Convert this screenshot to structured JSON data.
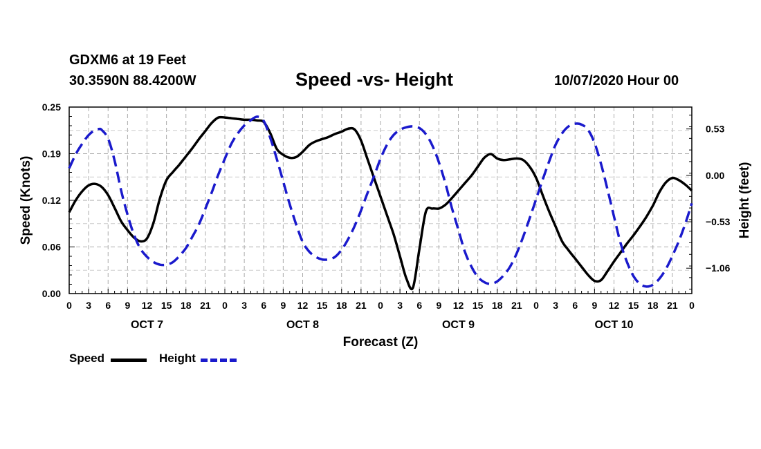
{
  "header": {
    "station": "GDXM6 at 19 Feet",
    "coords": "30.3590N 88.4200W",
    "title": "Speed -vs- Height",
    "timestamp": "10/07/2020 Hour 00"
  },
  "legend": {
    "speed_label": "Speed",
    "height_label": "Height"
  },
  "colors": {
    "speed": "#000000",
    "height": "#1a1acc",
    "grid": "#aaaaaa"
  },
  "chart_data": {
    "type": "line",
    "title": "Speed -vs- Height",
    "xlabel": "Forecast (Z)",
    "ylabel": "Speed (Knots)",
    "y2label": "Height (feet)",
    "xlim": [
      0,
      96
    ],
    "ylim": [
      0,
      0.25
    ],
    "y2lim": [
      -1.35,
      0.78
    ],
    "yticks": [
      "0.00",
      "0.06",
      "0.12",
      "0.19",
      "0.25"
    ],
    "y2ticks": [
      {
        "value": 0.53,
        "label": "0.53"
      },
      {
        "value": 0.0,
        "label": "0.00"
      },
      {
        "value": -0.53,
        "label": "-0.53"
      },
      {
        "value": -1.06,
        "label": "-1.06"
      }
    ],
    "xticks": [
      {
        "x": 0,
        "label": "0"
      },
      {
        "x": 3,
        "label": "3"
      },
      {
        "x": 6,
        "label": "6"
      },
      {
        "x": 9,
        "label": "9"
      },
      {
        "x": 12,
        "label": "12"
      },
      {
        "x": 15,
        "label": "15"
      },
      {
        "x": 18,
        "label": "18"
      },
      {
        "x": 21,
        "label": "21"
      },
      {
        "x": 24,
        "label": "0"
      },
      {
        "x": 27,
        "label": "3"
      },
      {
        "x": 30,
        "label": "6"
      },
      {
        "x": 33,
        "label": "9"
      },
      {
        "x": 36,
        "label": "12"
      },
      {
        "x": 39,
        "label": "15"
      },
      {
        "x": 42,
        "label": "18"
      },
      {
        "x": 45,
        "label": "21"
      },
      {
        "x": 48,
        "label": "0"
      },
      {
        "x": 51,
        "label": "3"
      },
      {
        "x": 54,
        "label": "6"
      },
      {
        "x": 57,
        "label": "9"
      },
      {
        "x": 60,
        "label": "12"
      },
      {
        "x": 63,
        "label": "15"
      },
      {
        "x": 66,
        "label": "18"
      },
      {
        "x": 69,
        "label": "21"
      },
      {
        "x": 72,
        "label": "0"
      },
      {
        "x": 75,
        "label": "3"
      },
      {
        "x": 78,
        "label": "6"
      },
      {
        "x": 81,
        "label": "9"
      },
      {
        "x": 84,
        "label": "12"
      },
      {
        "x": 87,
        "label": "15"
      },
      {
        "x": 90,
        "label": "18"
      },
      {
        "x": 93,
        "label": "21"
      },
      {
        "x": 96,
        "label": "0"
      }
    ],
    "days": [
      {
        "x": 12,
        "label": "OCT 7"
      },
      {
        "x": 36,
        "label": "OCT 8"
      },
      {
        "x": 60,
        "label": "OCT 9"
      },
      {
        "x": 84,
        "label": "OCT 10"
      }
    ],
    "series": [
      {
        "name": "Speed",
        "axis": "left",
        "style": "solid",
        "points": [
          [
            0,
            0.109
          ],
          [
            1,
            0.125
          ],
          [
            2,
            0.137
          ],
          [
            3,
            0.145
          ],
          [
            4,
            0.147
          ],
          [
            5,
            0.143
          ],
          [
            6,
            0.132
          ],
          [
            7,
            0.115
          ],
          [
            8,
            0.097
          ],
          [
            9,
            0.085
          ],
          [
            10,
            0.075
          ],
          [
            11,
            0.07
          ],
          [
            12,
            0.074
          ],
          [
            13,
            0.095
          ],
          [
            14,
            0.128
          ],
          [
            15,
            0.152
          ],
          [
            16,
            0.163
          ],
          [
            17,
            0.173
          ],
          [
            18,
            0.184
          ],
          [
            19,
            0.195
          ],
          [
            20,
            0.207
          ],
          [
            21,
            0.218
          ],
          [
            22,
            0.229
          ],
          [
            23,
            0.236
          ],
          [
            24,
            0.236
          ],
          [
            25,
            0.235
          ],
          [
            26,
            0.234
          ],
          [
            27,
            0.233
          ],
          [
            28,
            0.233
          ],
          [
            29,
            0.232
          ],
          [
            30,
            0.23
          ],
          [
            31,
            0.215
          ],
          [
            32,
            0.194
          ],
          [
            33,
            0.186
          ],
          [
            34,
            0.182
          ],
          [
            35,
            0.183
          ],
          [
            36,
            0.19
          ],
          [
            37,
            0.199
          ],
          [
            38,
            0.204
          ],
          [
            39,
            0.207
          ],
          [
            40,
            0.21
          ],
          [
            41,
            0.214
          ],
          [
            42,
            0.217
          ],
          [
            43,
            0.221
          ],
          [
            44,
            0.22
          ],
          [
            45,
            0.205
          ],
          [
            46,
            0.18
          ],
          [
            47,
            0.155
          ],
          [
            48,
            0.13
          ],
          [
            49,
            0.105
          ],
          [
            50,
            0.08
          ],
          [
            51,
            0.05
          ],
          [
            52,
            0.02
          ],
          [
            53,
            0.008
          ],
          [
            54,
            0.06
          ],
          [
            55,
            0.11
          ],
          [
            56,
            0.114
          ],
          [
            57,
            0.114
          ],
          [
            58,
            0.119
          ],
          [
            59,
            0.128
          ],
          [
            60,
            0.138
          ],
          [
            61,
            0.148
          ],
          [
            62,
            0.158
          ],
          [
            63,
            0.17
          ],
          [
            64,
            0.182
          ],
          [
            65,
            0.187
          ],
          [
            66,
            0.181
          ],
          [
            67,
            0.179
          ],
          [
            68,
            0.18
          ],
          [
            69,
            0.181
          ],
          [
            70,
            0.179
          ],
          [
            71,
            0.17
          ],
          [
            72,
            0.155
          ],
          [
            73,
            0.132
          ],
          [
            74,
            0.11
          ],
          [
            75,
            0.09
          ],
          [
            76,
            0.07
          ],
          [
            77,
            0.058
          ],
          [
            78,
            0.047
          ],
          [
            79,
            0.036
          ],
          [
            80,
            0.025
          ],
          [
            81,
            0.017
          ],
          [
            82,
            0.018
          ],
          [
            83,
            0.03
          ],
          [
            84,
            0.043
          ],
          [
            85,
            0.055
          ],
          [
            86,
            0.067
          ],
          [
            87,
            0.078
          ],
          [
            88,
            0.09
          ],
          [
            89,
            0.103
          ],
          [
            90,
            0.118
          ],
          [
            91,
            0.136
          ],
          [
            92,
            0.149
          ],
          [
            93,
            0.155
          ],
          [
            94,
            0.152
          ],
          [
            95,
            0.146
          ],
          [
            96,
            0.138
          ]
        ]
      },
      {
        "name": "Height",
        "axis": "right",
        "style": "dashed",
        "points": [
          [
            0,
            0.08
          ],
          [
            1,
            0.24
          ],
          [
            2,
            0.36
          ],
          [
            3,
            0.46
          ],
          [
            4,
            0.52
          ],
          [
            4.6,
            0.53
          ],
          [
            5,
            0.52
          ],
          [
            6,
            0.42
          ],
          [
            7,
            0.17
          ],
          [
            8,
            -0.17
          ],
          [
            9,
            -0.45
          ],
          [
            10,
            -0.68
          ],
          [
            11,
            -0.84
          ],
          [
            12,
            -0.93
          ],
          [
            13,
            -0.99
          ],
          [
            14,
            -1.02
          ],
          [
            15,
            -1.02
          ],
          [
            16,
            -0.99
          ],
          [
            17,
            -0.92
          ],
          [
            18,
            -0.83
          ],
          [
            19,
            -0.7
          ],
          [
            20,
            -0.56
          ],
          [
            21,
            -0.38
          ],
          [
            22,
            -0.19
          ],
          [
            23,
            0.01
          ],
          [
            24,
            0.19
          ],
          [
            25,
            0.36
          ],
          [
            26,
            0.48
          ],
          [
            27,
            0.57
          ],
          [
            28,
            0.63
          ],
          [
            29,
            0.67
          ],
          [
            30,
            0.62
          ],
          [
            31,
            0.43
          ],
          [
            32,
            0.19
          ],
          [
            33,
            -0.07
          ],
          [
            34,
            -0.33
          ],
          [
            35,
            -0.56
          ],
          [
            36,
            -0.76
          ],
          [
            37,
            -0.87
          ],
          [
            38,
            -0.93
          ],
          [
            39,
            -0.96
          ],
          [
            40,
            -0.96
          ],
          [
            41,
            -0.93
          ],
          [
            42,
            -0.85
          ],
          [
            43,
            -0.73
          ],
          [
            44,
            -0.58
          ],
          [
            45,
            -0.4
          ],
          [
            46,
            -0.2
          ],
          [
            47,
            -0.01
          ],
          [
            48,
            0.19
          ],
          [
            49,
            0.35
          ],
          [
            50,
            0.46
          ],
          [
            51,
            0.52
          ],
          [
            52,
            0.55
          ],
          [
            53,
            0.56
          ],
          [
            54,
            0.54
          ],
          [
            55,
            0.47
          ],
          [
            56,
            0.34
          ],
          [
            57,
            0.15
          ],
          [
            58,
            -0.09
          ],
          [
            59,
            -0.37
          ],
          [
            60,
            -0.62
          ],
          [
            61,
            -0.87
          ],
          [
            62,
            -1.04
          ],
          [
            63,
            -1.16
          ],
          [
            64,
            -1.22
          ],
          [
            65,
            -1.24
          ],
          [
            66,
            -1.21
          ],
          [
            67,
            -1.14
          ],
          [
            68,
            -1.04
          ],
          [
            69,
            -0.89
          ],
          [
            70,
            -0.7
          ],
          [
            71,
            -0.49
          ],
          [
            72,
            -0.27
          ],
          [
            73,
            -0.05
          ],
          [
            74,
            0.16
          ],
          [
            75,
            0.35
          ],
          [
            76,
            0.48
          ],
          [
            77,
            0.56
          ],
          [
            78,
            0.59
          ],
          [
            79,
            0.58
          ],
          [
            80,
            0.52
          ],
          [
            81,
            0.37
          ],
          [
            82,
            0.13
          ],
          [
            83,
            -0.16
          ],
          [
            84,
            -0.47
          ],
          [
            85,
            -0.77
          ],
          [
            86,
            -0.99
          ],
          [
            87,
            -1.15
          ],
          [
            88,
            -1.24
          ],
          [
            89,
            -1.27
          ],
          [
            90,
            -1.25
          ],
          [
            91,
            -1.18
          ],
          [
            92,
            -1.07
          ],
          [
            93,
            -0.92
          ],
          [
            94,
            -0.75
          ],
          [
            95,
            -0.55
          ],
          [
            96,
            -0.32
          ]
        ]
      }
    ],
    "grid": true
  }
}
